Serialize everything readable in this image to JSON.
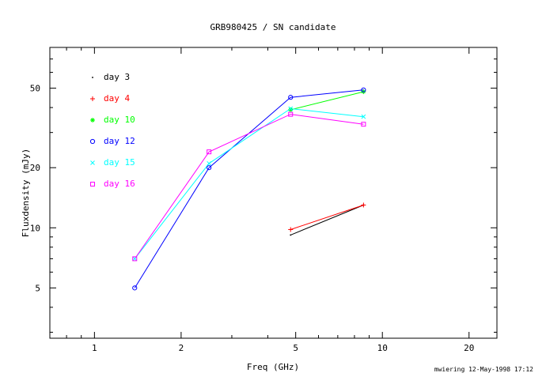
{
  "chart_data": {
    "type": "line",
    "title": "GRB980425 / SN candidate",
    "xlabel": "Freq (GHz)",
    "ylabel": "Fluxdensity (mJy)",
    "x_scale": "log",
    "y_scale": "log",
    "xlim": [
      0.7,
      25
    ],
    "ylim": [
      2.8,
      80
    ],
    "x_tick_labels": [
      1,
      2,
      5,
      10,
      20
    ],
    "y_tick_labels": [
      5,
      10,
      20,
      50
    ],
    "legend_placement": "top-left",
    "grid": false,
    "series": [
      {
        "name": "day 3",
        "marker": "dot",
        "color": "#000000",
        "x": [
          4.8,
          8.6
        ],
        "values": [
          9.2,
          13.0
        ]
      },
      {
        "name": "day 4",
        "marker": "plus",
        "color": "#ff0000",
        "x": [
          4.8,
          8.6
        ],
        "values": [
          9.8,
          13.0
        ]
      },
      {
        "name": "day 10",
        "marker": "star",
        "color": "#00ff00",
        "x": [
          4.8,
          8.6
        ],
        "values": [
          39.0,
          48.0
        ]
      },
      {
        "name": "day 12",
        "marker": "circle",
        "color": "#0000ff",
        "x": [
          1.38,
          2.5,
          4.8,
          8.6
        ],
        "values": [
          5.0,
          20.0,
          45.0,
          49.0
        ]
      },
      {
        "name": "day 15",
        "marker": "cross",
        "color": "#00ffff",
        "x": [
          1.38,
          2.5,
          4.8,
          8.6
        ],
        "values": [
          7.0,
          21.0,
          39.5,
          36.0
        ]
      },
      {
        "name": "day 16",
        "marker": "square",
        "color": "#ff00ff",
        "x": [
          1.38,
          2.5,
          4.8,
          8.6
        ],
        "values": [
          7.0,
          24.0,
          37.0,
          33.0
        ]
      }
    ]
  },
  "footer_stamp": "mwiering 12-May-1998 17:12"
}
